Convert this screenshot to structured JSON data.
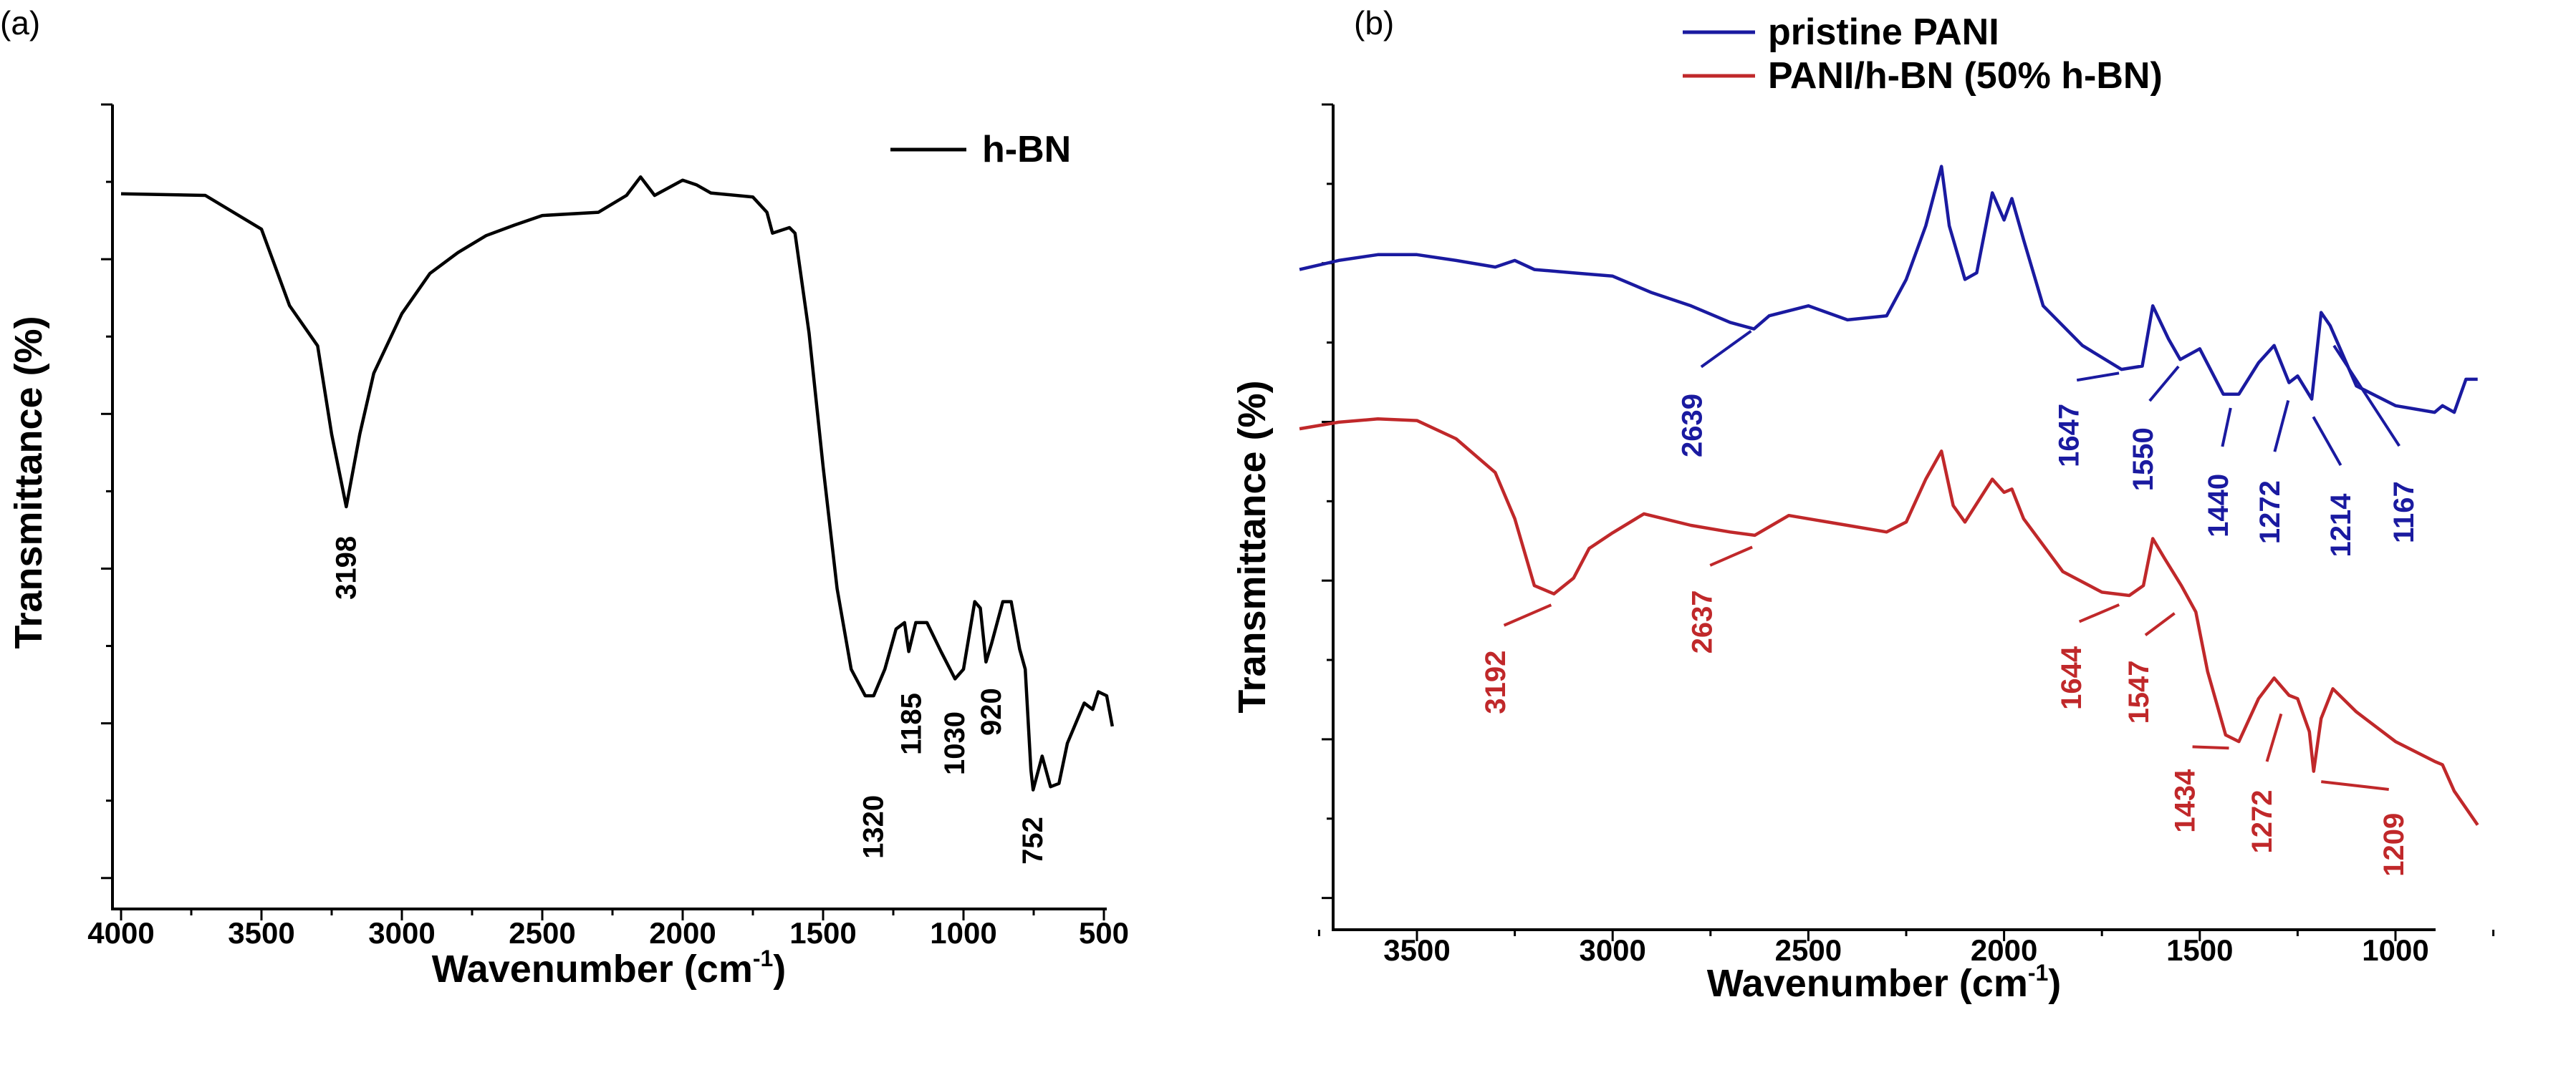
{
  "chart_data": [
    {
      "panel_label": "(a)",
      "type": "line",
      "xlabel": "Wavenumber (cm",
      "xlabel_sup": "-1",
      "xlabel_end": ")",
      "ylabel": "Transmittance (%)",
      "xlim": [
        4000,
        460
      ],
      "ylim": [
        0,
        100
      ],
      "x_reversed": true,
      "y_tick_labels": false,
      "grid": false,
      "legend_position": "top-right",
      "xticks": [
        4000,
        3500,
        3000,
        2500,
        2000,
        1500,
        1000,
        500
      ],
      "xtick_labels": [
        "4000",
        "3500",
        "3000",
        "2500",
        "2000",
        "1500",
        "1000",
        "500"
      ],
      "series": [
        {
          "name": "h-BN",
          "color": "#000000",
          "x": [
            4000,
            3700,
            3500,
            3400,
            3300,
            3250,
            3198,
            3150,
            3100,
            3000,
            2900,
            2800,
            2700,
            2600,
            2500,
            2300,
            2200,
            2150,
            2100,
            2000,
            1950,
            1900,
            1750,
            1700,
            1680,
            1620,
            1600,
            1550,
            1500,
            1450,
            1400,
            1350,
            1320,
            1280,
            1240,
            1210,
            1195,
            1170,
            1130,
            1080,
            1030,
            1000,
            960,
            940,
            920,
            900,
            860,
            830,
            800,
            780,
            760,
            752,
            720,
            690,
            660,
            630,
            600,
            570,
            540,
            520,
            490,
            470
          ],
          "y": [
            88.9,
            88.7,
            84.5,
            75,
            70,
            59,
            50,
            59,
            66.6,
            74,
            79,
            81.6,
            83.7,
            85,
            86.2,
            86.6,
            88.7,
            91,
            88.7,
            90.6,
            90,
            89,
            88.5,
            86.6,
            84,
            84.7,
            84,
            71.6,
            55,
            39.8,
            29.8,
            26.5,
            26.5,
            29.8,
            34.8,
            35.6,
            32,
            35.6,
            35.6,
            32,
            28.6,
            29.8,
            38.2,
            37.4,
            30.7,
            33,
            38.2,
            38.2,
            32.3,
            29.8,
            17.3,
            14.8,
            19,
            15.2,
            15.6,
            20.6,
            23.1,
            25.6,
            24.8,
            27,
            26.5,
            22.7
          ]
        }
      ],
      "annotations": [
        {
          "text": "3198",
          "x": 3198,
          "y": 42.4,
          "color": "#000000"
        },
        {
          "text": "1320",
          "x": 1320,
          "y": 10.2,
          "color": "#000000"
        },
        {
          "text": "1185",
          "x": 1185,
          "y": 23,
          "color": "#000000"
        },
        {
          "text": "1030",
          "x": 1030,
          "y": 20.6,
          "color": "#000000"
        },
        {
          "text": "920",
          "x": 900,
          "y": 24.5,
          "color": "#000000"
        },
        {
          "text": "752",
          "x": 752,
          "y": 8.5,
          "color": "#000000"
        }
      ]
    },
    {
      "panel_label": "(b)",
      "type": "line",
      "xlabel": "Wavenumber (cm",
      "xlabel_sup": "-1",
      "xlabel_end": ")",
      "ylabel": "Transmittance (%)",
      "xlim": [
        3800,
        750
      ],
      "ylim": [
        0,
        100
      ],
      "x_reversed": true,
      "y_tick_labels": false,
      "grid": false,
      "legend_position": "top-right",
      "xticks": [
        3500,
        3000,
        2500,
        2000,
        1500,
        1000
      ],
      "xtick_labels": [
        "3500",
        "3000",
        "2500",
        "2000",
        "1500",
        "1000"
      ],
      "series": [
        {
          "name": "pristine PANI",
          "color": "#1a1aa0",
          "x": [
            3800,
            3700,
            3600,
            3500,
            3400,
            3300,
            3250,
            3200,
            3100,
            3000,
            2900,
            2800,
            2700,
            2639,
            2600,
            2500,
            2400,
            2300,
            2250,
            2200,
            2160,
            2140,
            2100,
            2070,
            2030,
            2000,
            1980,
            1950,
            1900,
            1800,
            1700,
            1647,
            1620,
            1580,
            1550,
            1500,
            1440,
            1400,
            1350,
            1310,
            1272,
            1250,
            1214,
            1190,
            1167,
            1100,
            1000,
            900,
            880,
            850,
            820,
            790
          ],
          "y": [
            80,
            81.1,
            81.8,
            81.8,
            81.1,
            80.3,
            81.1,
            80,
            79.6,
            79.2,
            77.2,
            75.6,
            73.6,
            72.8,
            74.4,
            75.6,
            73.9,
            74.4,
            78.8,
            85.3,
            92.5,
            85.3,
            78.8,
            79.6,
            89.3,
            86,
            88.6,
            83.6,
            75.6,
            70.8,
            67.9,
            68.3,
            75.6,
            71.6,
            69.1,
            70.4,
            64.9,
            64.9,
            68.7,
            70.8,
            66.3,
            67.1,
            64.3,
            74.8,
            73.2,
            65.9,
            63.5,
            62.7,
            63.5,
            62.7,
            66.7,
            66.7
          ]
        },
        {
          "name": "PANI/h-BN (50% h-BN)",
          "color": "#c0282a",
          "x": [
            3800,
            3700,
            3600,
            3500,
            3400,
            3300,
            3250,
            3200,
            3150,
            3100,
            3060,
            3000,
            2920,
            2800,
            2700,
            2637,
            2550,
            2400,
            2300,
            2250,
            2200,
            2160,
            2130,
            2100,
            2030,
            2000,
            1980,
            1950,
            1850,
            1750,
            1680,
            1644,
            1620,
            1590,
            1547,
            1510,
            1480,
            1434,
            1400,
            1350,
            1310,
            1272,
            1250,
            1220,
            1209,
            1190,
            1160,
            1100,
            1000,
            900,
            880,
            850,
            790
          ],
          "y": [
            60.7,
            61.5,
            61.9,
            61.7,
            59.5,
            55.4,
            49.8,
            41.7,
            40.7,
            42.6,
            46.2,
            48.1,
            50.4,
            49,
            48.2,
            47.8,
            50.2,
            49,
            48.2,
            49.4,
            54.6,
            58,
            51.4,
            49.4,
            54.6,
            53,
            53.4,
            49.8,
            43.4,
            40.9,
            40.5,
            41.7,
            47.4,
            45,
            41.7,
            38.5,
            31.3,
            23.6,
            22.8,
            28,
            30.5,
            28.4,
            28,
            24,
            19.2,
            25.6,
            29.2,
            26.4,
            22.8,
            20.4,
            20,
            16.8,
            12.7
          ]
        }
      ],
      "annotations": [
        {
          "text": "2639",
          "x": 2796,
          "y": 61.1,
          "color": "#1a1aa0",
          "target": [
            2639,
            72.8
          ]
        },
        {
          "text": "1647",
          "x": 1834,
          "y": 59.9,
          "color": "#1a1aa0",
          "target": [
            1700,
            67.5
          ]
        },
        {
          "text": "1550",
          "x": 1644,
          "y": 57,
          "color": "#1a1aa0",
          "target": [
            1550,
            68.5
          ]
        },
        {
          "text": "1440",
          "x": 1452,
          "y": 51.4,
          "color": "#1a1aa0",
          "target": [
            1420,
            63.5
          ]
        },
        {
          "text": "1272",
          "x": 1320,
          "y": 50.6,
          "color": "#1a1aa0",
          "target": [
            1272,
            64.5
          ]
        },
        {
          "text": "1214",
          "x": 1139,
          "y": 49,
          "color": "#1a1aa0",
          "target": [
            1214,
            62.5
          ]
        },
        {
          "text": "1167",
          "x": 978,
          "y": 50.6,
          "color": "#1a1aa0",
          "target": [
            1167,
            71.5
          ]
        },
        {
          "text": "3192",
          "x": 3299,
          "y": 30,
          "color": "#c0282a",
          "target": [
            3150,
            39.5
          ]
        },
        {
          "text": "2637",
          "x": 2771,
          "y": 37.3,
          "color": "#c0282a",
          "target": [
            2637,
            46.5
          ]
        },
        {
          "text": "1644",
          "x": 1827,
          "y": 30.5,
          "color": "#c0282a",
          "target": [
            1700,
            39.5
          ]
        },
        {
          "text": "1547",
          "x": 1655,
          "y": 28.8,
          "color": "#c0282a",
          "target": [
            1560,
            38.5
          ]
        },
        {
          "text": "1434",
          "x": 1537,
          "y": 15.6,
          "color": "#c0282a",
          "target": [
            1420,
            22
          ]
        },
        {
          "text": "1272",
          "x": 1340,
          "y": 13.1,
          "color": "#c0282a",
          "target": [
            1290,
            26.5
          ]
        },
        {
          "text": "1209",
          "x": 1004,
          "y": 10.3,
          "color": "#c0282a",
          "target": [
            1200,
            18
          ]
        }
      ]
    }
  ]
}
